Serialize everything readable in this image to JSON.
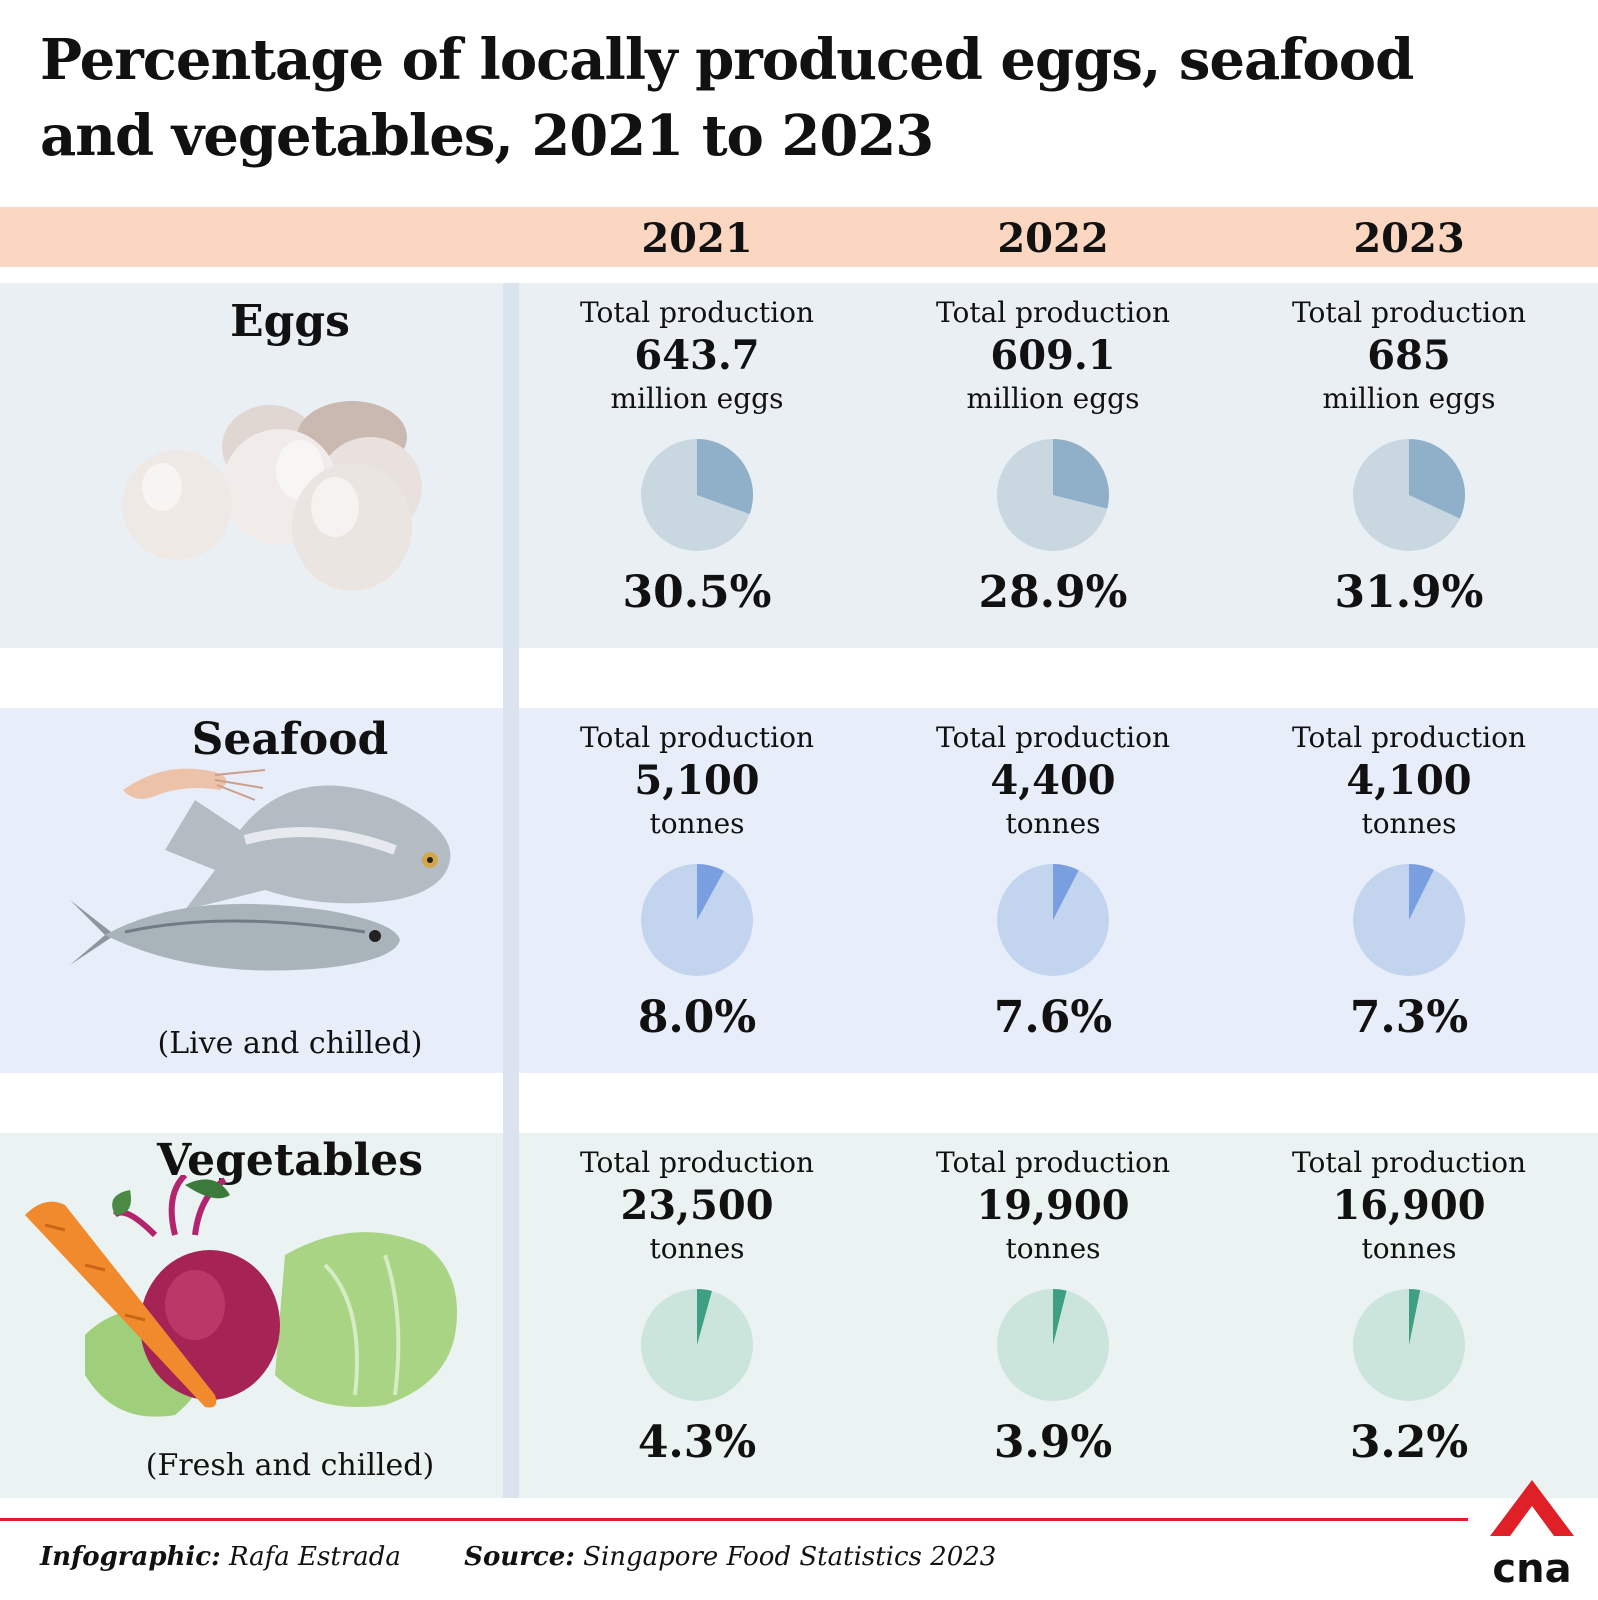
{
  "title": "Percentage of locally produced eggs, seafood and vegetables, 2021 to 2023",
  "years": [
    "2021",
    "2022",
    "2023"
  ],
  "colors": {
    "header_band": "#fbd7c1",
    "eggs_bg": "#eaeff4",
    "seafood_bg": "#e8eef9",
    "vegetables_bg": "#eaf3f1",
    "eggs_pie_base": "#c9d7e1",
    "eggs_pie_slice": "#8fb0c8",
    "seafood_pie_base": "#c3d4ef",
    "seafood_pie_slice": "#7a9fe0",
    "vegetables_pie_base": "#cbe4dc",
    "vegetables_pie_slice": "#3e9f82",
    "footer_line": "#e02027",
    "logo_red": "#e02027"
  },
  "rows": [
    {
      "category": "Eggs",
      "note": "",
      "illustration": "eggs-illustration",
      "cells": [
        {
          "label": "Total production",
          "value": "643.7",
          "unit": "million eggs",
          "percent_text": "30.5%"
        },
        {
          "label": "Total production",
          "value": "609.1",
          "unit": "million eggs",
          "percent_text": "28.9%"
        },
        {
          "label": "Total production",
          "value": "685",
          "unit": "million eggs",
          "percent_text": "31.9%"
        }
      ]
    },
    {
      "category": "Seafood",
      "note": "(Live and chilled)",
      "illustration": "seafood-illustration",
      "cells": [
        {
          "label": "Total production",
          "value": "5,100",
          "unit": "tonnes",
          "percent_text": "8.0%"
        },
        {
          "label": "Total production",
          "value": "4,400",
          "unit": "tonnes",
          "percent_text": "7.6%"
        },
        {
          "label": "Total production",
          "value": "4,100",
          "unit": "tonnes",
          "percent_text": "7.3%"
        }
      ]
    },
    {
      "category": "Vegetables",
      "note": "(Fresh and chilled)",
      "illustration": "vegetables-illustration",
      "cells": [
        {
          "label": "Total production",
          "value": "23,500",
          "unit": "tonnes",
          "percent_text": "4.3%"
        },
        {
          "label": "Total production",
          "value": "19,900",
          "unit": "tonnes",
          "percent_text": "3.9%"
        },
        {
          "label": "Total production",
          "value": "16,900",
          "unit": "tonnes",
          "percent_text": "3.2%"
        }
      ]
    }
  ],
  "chart_data": {
    "type": "pie",
    "title": "Percentage of locally produced eggs, seafood and vegetables, 2021 to 2023",
    "categories": [
      "2021",
      "2022",
      "2023"
    ],
    "series": [
      {
        "name": "Eggs",
        "values": [
          30.5,
          28.9,
          31.9
        ],
        "total_production": [
          643.7,
          609.1,
          685
        ],
        "unit": "million eggs"
      },
      {
        "name": "Seafood",
        "values": [
          8.0,
          7.6,
          7.3
        ],
        "total_production": [
          5100,
          4400,
          4100
        ],
        "unit": "tonnes"
      },
      {
        "name": "Vegetables",
        "values": [
          4.3,
          3.9,
          3.2
        ],
        "total_production": [
          23500,
          19900,
          16900
        ],
        "unit": "tonnes"
      }
    ]
  },
  "footer": {
    "infographic_label": "Infographic:",
    "infographic_value": "Rafa Estrada",
    "source_label": "Source:",
    "source_value": "Singapore Food Statistics 2023"
  },
  "logo": {
    "text": "cna",
    "icon": "cna-logo"
  }
}
